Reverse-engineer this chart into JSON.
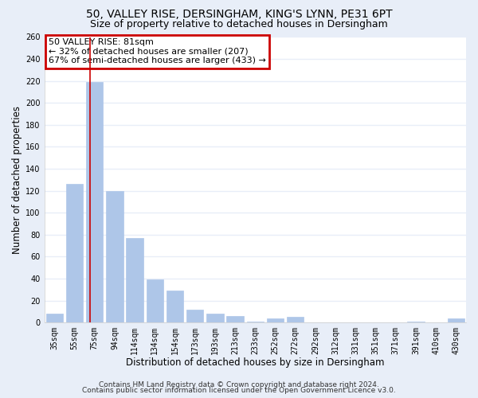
{
  "title1": "50, VALLEY RISE, DERSINGHAM, KING'S LYNN, PE31 6PT",
  "title2": "Size of property relative to detached houses in Dersingham",
  "xlabel": "Distribution of detached houses by size in Dersingham",
  "ylabel": "Number of detached properties",
  "categories": [
    "35sqm",
    "55sqm",
    "75sqm",
    "94sqm",
    "114sqm",
    "134sqm",
    "154sqm",
    "173sqm",
    "193sqm",
    "213sqm",
    "233sqm",
    "252sqm",
    "272sqm",
    "292sqm",
    "312sqm",
    "331sqm",
    "351sqm",
    "371sqm",
    "391sqm",
    "410sqm",
    "430sqm"
  ],
  "values": [
    8,
    126,
    219,
    120,
    77,
    39,
    29,
    12,
    8,
    6,
    1,
    4,
    5,
    0,
    0,
    0,
    0,
    0,
    1,
    0,
    4
  ],
  "bar_color": "#aec6e8",
  "bar_edge_color": "#aec6e8",
  "vline_color": "#cc0000",
  "vline_pos": 2.0,
  "annotation_title": "50 VALLEY RISE: 81sqm",
  "annotation_line1": "← 32% of detached houses are smaller (207)",
  "annotation_line2": "67% of semi-detached houses are larger (433) →",
  "annotation_box_color": "#cc0000",
  "ylim": [
    0,
    260
  ],
  "yticks": [
    0,
    20,
    40,
    60,
    80,
    100,
    120,
    140,
    160,
    180,
    200,
    220,
    240,
    260
  ],
  "footer1": "Contains HM Land Registry data © Crown copyright and database right 2024.",
  "footer2": "Contains public sector information licensed under the Open Government Licence v3.0.",
  "bg_color": "#e8eef8",
  "plot_bg_color": "#ffffff",
  "grid_color": "#e8eef8",
  "title_fontsize": 10,
  "subtitle_fontsize": 9,
  "xlabel_fontsize": 8.5,
  "ylabel_fontsize": 8.5,
  "tick_fontsize": 7,
  "footer_fontsize": 6.5,
  "ann_fontsize": 8
}
